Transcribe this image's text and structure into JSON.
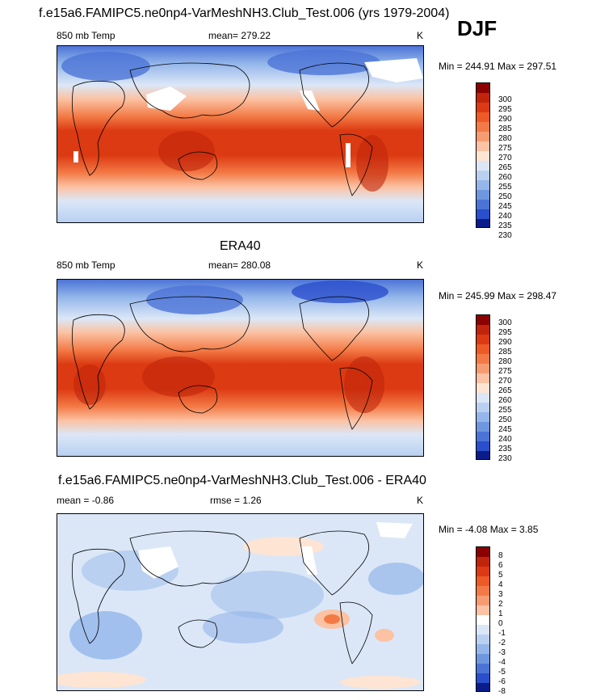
{
  "panels": [
    {
      "title": "f.e15a6.FAMIPC5.ne0np4-VarMeshNH3.Club_Test.006 (yrs 1979-2004)",
      "left_label": "850 mb Temp",
      "center_label": "mean= 279.22",
      "units": "K",
      "stats": "Min = 244.91 Max = 297.51",
      "ticks": [
        "300",
        "295",
        "290",
        "285",
        "280",
        "275",
        "270",
        "265",
        "260",
        "255",
        "250",
        "245",
        "240",
        "235",
        "230"
      ]
    },
    {
      "title": "ERA40",
      "left_label": "850 mb Temp",
      "center_label": "mean= 280.08",
      "units": "K",
      "stats": "Min = 245.99 Max = 298.47",
      "ticks": [
        "300",
        "295",
        "290",
        "285",
        "280",
        "275",
        "270",
        "265",
        "260",
        "255",
        "250",
        "245",
        "240",
        "235",
        "230"
      ]
    },
    {
      "title": "f.e15a6.FAMIPC5.ne0np4-VarMeshNH3.Club_Test.006 - ERA40",
      "left_label": "mean =  -0.86",
      "center_label": "rmse =   1.26",
      "units": "K",
      "stats": "Min =  -4.08 Max =   3.85",
      "ticks": [
        "8",
        "6",
        "5",
        "4",
        "3",
        "2",
        "1",
        "0",
        "-1",
        "-2",
        "-3",
        "-4",
        "-5",
        "-6",
        "-8"
      ]
    }
  ],
  "season": "DJF",
  "colors": {
    "temp_scale": [
      "#8b0000",
      "#c0240a",
      "#dc3a12",
      "#ec5a26",
      "#f37a46",
      "#f79c72",
      "#fbc2a3",
      "#fde4d3",
      "#dbe7f7",
      "#b9d0f1",
      "#94b6ea",
      "#6f97e0",
      "#4c74d7",
      "#2a4fcc",
      "#0a1c8a"
    ],
    "diff_scale": [
      "#8b0000",
      "#c0240a",
      "#dc3a12",
      "#ec5a26",
      "#f37a46",
      "#f79c72",
      "#fbc2a3",
      "#ffffff",
      "#dbe7f7",
      "#b9d0f1",
      "#94b6ea",
      "#6f97e0",
      "#4c74d7",
      "#2a4fcc",
      "#0a1c8a"
    ]
  }
}
